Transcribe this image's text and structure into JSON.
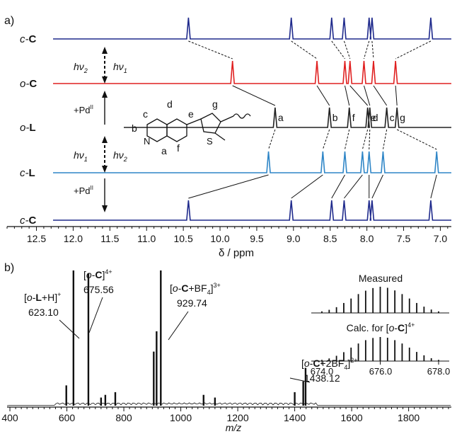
{
  "panel_a": {
    "label": "a)",
    "xlabel": "δ / ppm",
    "xlim": [
      12.9,
      6.85
    ],
    "ticks": [
      "12.5",
      "12.0",
      "11.5",
      "11.0",
      "10.5",
      "10.0",
      "9.5",
      "9.0",
      "8.5",
      "8.0",
      "7.5",
      "7.0"
    ],
    "spectra": [
      {
        "label_prefix": "c-",
        "label_bold": "C",
        "color": "#1f2a8c",
        "peaks": [
          10.43,
          9.03,
          8.48,
          8.31,
          7.97,
          7.93,
          7.13
        ]
      },
      {
        "label_prefix": "o-",
        "label_bold": "C",
        "color": "#e02020",
        "peaks": [
          9.83,
          8.68,
          8.3,
          8.23,
          8.04,
          7.91,
          7.61
        ]
      },
      {
        "label_prefix": "o-",
        "label_bold": "L",
        "color": "#222222",
        "peaks": [
          9.25,
          8.51,
          8.24,
          7.99,
          7.96,
          7.73,
          7.59
        ]
      },
      {
        "label_prefix": "c-",
        "label_bold": "L",
        "color": "#2f86c7",
        "peaks": [
          9.34,
          8.6,
          8.3,
          8.06,
          7.97,
          7.78,
          7.05
        ]
      },
      {
        "label_prefix": "c-",
        "label_bold": "C",
        "color": "#1f2a8c",
        "peaks": [
          10.43,
          9.03,
          8.48,
          8.31,
          7.97,
          7.93,
          7.13
        ]
      }
    ],
    "peak_letters": [
      "a",
      "b",
      "f",
      "e",
      "d",
      "c",
      "g"
    ],
    "arrows": {
      "hv2": "hν",
      "hv2_sub": "2",
      "hv1": "hν",
      "hv1_sub": "1",
      "pd": "+Pd",
      "pd_sup": "II"
    },
    "molecule_labels": [
      "c",
      "d",
      "e",
      "g",
      "b",
      "a",
      "f",
      "N",
      "S"
    ]
  },
  "panel_b": {
    "label": "b)",
    "xlabel": "m/z",
    "xlim": [
      390,
      1950
    ],
    "ticks": [
      "400",
      "600",
      "800",
      "1000",
      "1200",
      "1400",
      "1600",
      "1800"
    ],
    "annotations": [
      {
        "ion": "[o-L+H]+",
        "value": "623.10"
      },
      {
        "ion": "[o-C]4+",
        "value": "675.56"
      },
      {
        "ion": "[o-C+BF4]3+",
        "value": "929.74"
      },
      {
        "ion": "[o-C+2BF4]2+",
        "value": "1438.12"
      }
    ],
    "inset": {
      "measured": "Measured",
      "calc": "Calc. for [o-C]4+",
      "ticks": [
        "674.0",
        "676.0",
        "678.0"
      ]
    }
  },
  "chart_data": [
    {
      "type": "line",
      "title": "",
      "xlabel": "δ / ppm",
      "ylabel": "",
      "xlim": [
        12.9,
        6.85
      ],
      "x_reversed": true,
      "series": [
        {
          "name": "c-C",
          "peaks_ppm": [
            10.43,
            9.03,
            8.48,
            8.31,
            7.97,
            7.93,
            7.13
          ]
        },
        {
          "name": "o-C",
          "peaks_ppm": [
            9.83,
            8.68,
            8.3,
            8.23,
            8.04,
            7.91,
            7.61
          ]
        },
        {
          "name": "o-L",
          "peaks_ppm": [
            9.25,
            8.51,
            8.24,
            7.99,
            7.96,
            7.73,
            7.59
          ]
        },
        {
          "name": "c-L",
          "peaks_ppm": [
            9.34,
            8.6,
            8.3,
            8.06,
            7.97,
            7.78,
            7.05
          ]
        },
        {
          "name": "c-C",
          "peaks_ppm": [
            10.43,
            9.03,
            8.48,
            8.31,
            7.97,
            7.93,
            7.13
          ]
        }
      ]
    },
    {
      "type": "bar",
      "title": "",
      "xlabel": "m/z",
      "ylabel": "",
      "xlim": [
        390,
        1950
      ],
      "x": [
        598,
        623.1,
        675.56,
        720,
        735,
        770,
        905,
        915,
        929.74,
        1080,
        1120,
        1400,
        1430,
        1438.12
      ],
      "values": [
        15,
        100,
        98,
        6,
        8,
        10,
        40,
        55,
        100,
        8,
        6,
        10,
        18,
        28
      ]
    },
    {
      "type": "bar",
      "title": "",
      "xlabel": "",
      "ylabel": "",
      "xlim": [
        673.6,
        678.4
      ],
      "series": [
        {
          "name": "Measured",
          "x": [
            674.0,
            674.25,
            674.5,
            674.75,
            675.0,
            675.25,
            675.5,
            675.75,
            676.0,
            676.25,
            676.5,
            676.75,
            677.0,
            677.25,
            677.5,
            677.75,
            678.0
          ],
          "values": [
            6,
            12,
            22,
            38,
            55,
            72,
            85,
            95,
            100,
            96,
            86,
            72,
            55,
            38,
            24,
            13,
            6
          ]
        },
        {
          "name": "Calc. for [o-C]4+",
          "x": [
            674.0,
            674.25,
            674.5,
            674.75,
            675.0,
            675.25,
            675.5,
            675.75,
            676.0,
            676.25,
            676.5,
            676.75,
            677.0,
            677.25,
            677.5,
            677.75,
            678.0
          ],
          "values": [
            5,
            11,
            22,
            37,
            56,
            73,
            87,
            96,
            100,
            97,
            87,
            73,
            56,
            38,
            24,
            12,
            5
          ]
        }
      ]
    }
  ]
}
